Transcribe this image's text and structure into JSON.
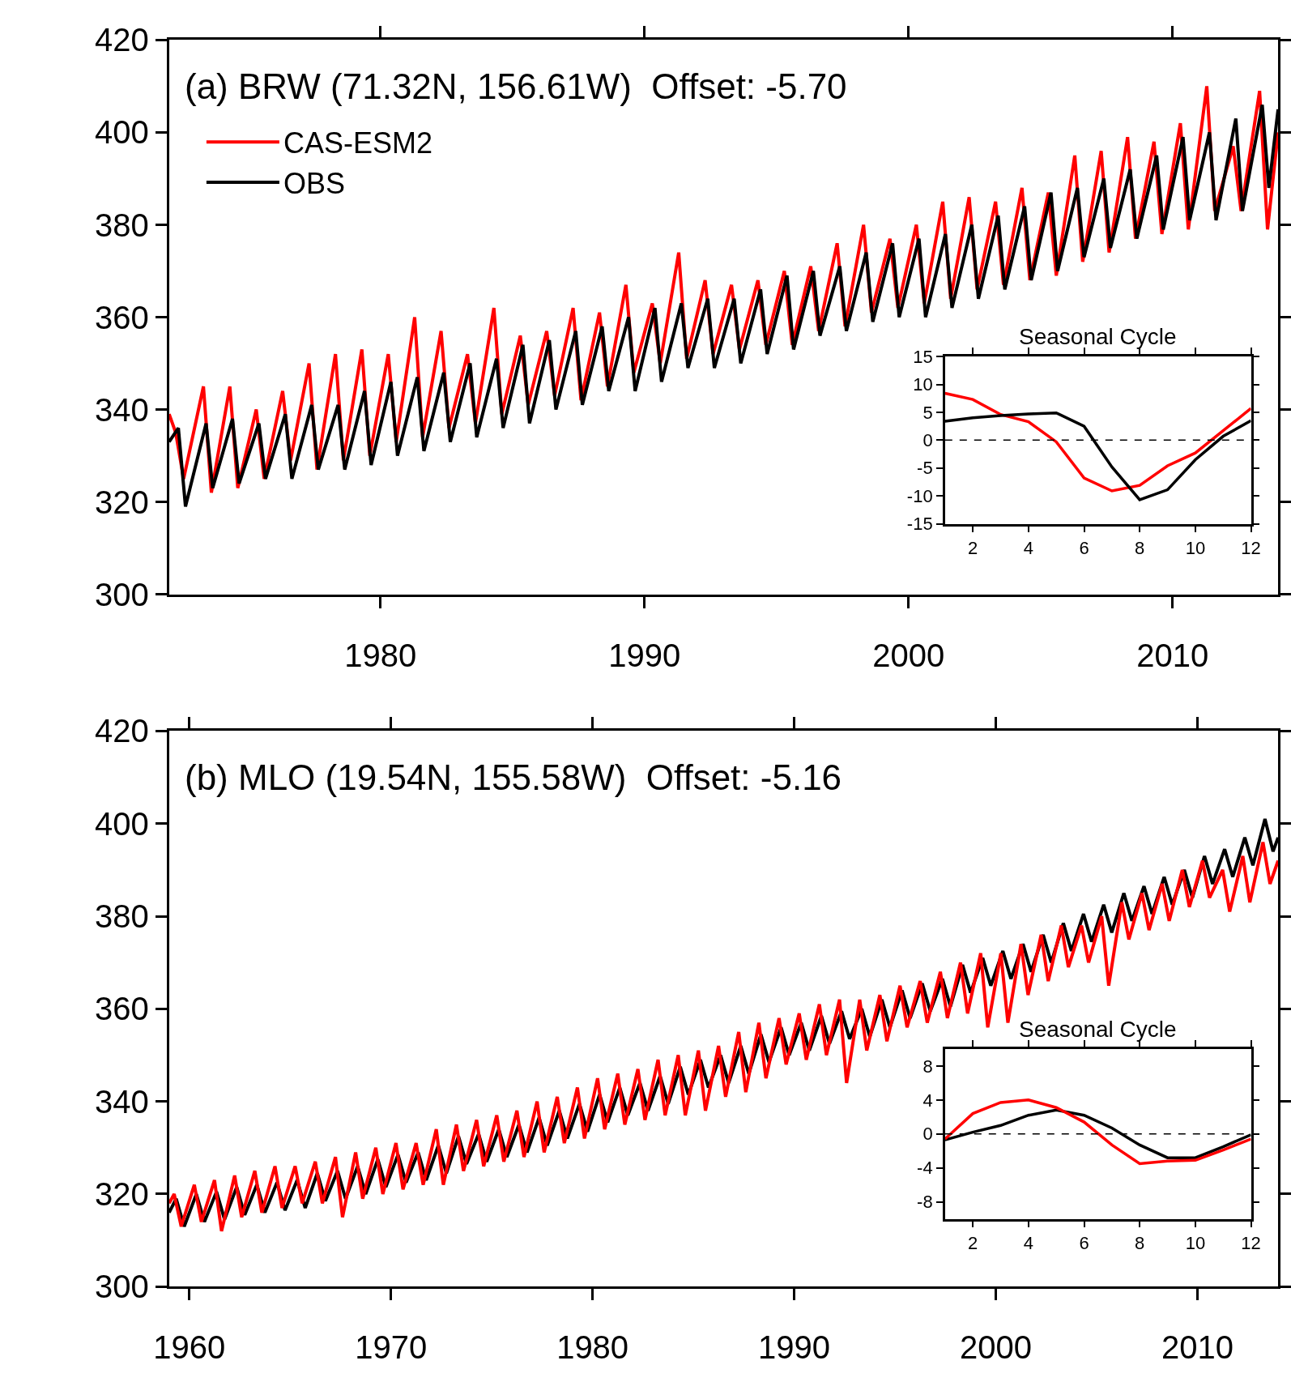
{
  "chart_data": [
    {
      "type": "line",
      "title": "(a) BRW (71.32N, 156.61W)  Offset: -5.70",
      "xlim": [
        1972,
        2014
      ],
      "xticks": [
        1980,
        1990,
        2000,
        2010
      ],
      "ylim": [
        300,
        420
      ],
      "yticks": [
        300,
        320,
        340,
        360,
        380,
        400,
        420
      ],
      "grid": false,
      "legend": "top left",
      "line_style": "solid",
      "marker": "none",
      "series": [
        {
          "name": "CAS-ESM2",
          "color": "#ff0000",
          "x": [
            1972.0,
            1972.25,
            1972.55,
            1973.3,
            1973.6,
            1974.3,
            1974.6,
            1975.3,
            1975.6,
            1976.3,
            1976.6,
            1977.3,
            1977.6,
            1978.3,
            1978.6,
            1979.3,
            1979.6,
            1980.3,
            1980.6,
            1981.3,
            1981.6,
            1982.3,
            1982.6,
            1983.3,
            1983.6,
            1984.3,
            1984.6,
            1985.3,
            1985.6,
            1986.3,
            1986.6,
            1987.3,
            1987.6,
            1988.3,
            1988.6,
            1989.3,
            1989.6,
            1990.3,
            1990.6,
            1991.3,
            1991.6,
            1992.3,
            1992.6,
            1993.3,
            1993.6,
            1994.3,
            1994.6,
            1995.3,
            1995.6,
            1996.3,
            1996.6,
            1997.3,
            1997.6,
            1998.3,
            1998.6,
            1999.3,
            1999.6,
            2000.3,
            2000.6,
            2001.3,
            2001.6,
            2002.3,
            2002.6,
            2003.3,
            2003.6,
            2004.3,
            2004.6,
            2005.3,
            2005.6,
            2006.3,
            2006.6,
            2007.3,
            2007.6,
            2008.3,
            2008.6,
            2009.3,
            2009.6,
            2010.3,
            2010.6,
            2011.3,
            2011.6,
            2012.3,
            2012.6,
            2013.3,
            2013.6,
            2014.0
          ],
          "values": [
            339,
            335,
            325,
            345,
            322,
            345,
            323,
            340,
            325,
            344,
            329,
            350,
            327,
            352,
            329,
            353,
            330,
            352,
            333,
            360,
            334,
            357,
            336,
            352,
            337,
            362,
            339,
            356,
            341,
            357,
            343,
            362,
            342,
            361,
            345,
            367,
            348,
            363,
            350,
            374,
            351,
            368,
            352,
            367,
            353,
            368,
            354,
            370,
            354,
            371,
            357,
            376,
            358,
            380,
            361,
            377,
            362,
            380,
            363,
            385,
            364,
            386,
            366,
            385,
            367,
            388,
            368,
            387,
            369,
            395,
            372,
            396,
            374,
            399,
            377,
            398,
            378,
            402,
            379,
            410,
            383,
            397,
            383,
            409,
            379,
            400
          ]
        },
        {
          "name": "OBS",
          "color": "#000000",
          "x": [
            1972.0,
            1972.35,
            1972.62,
            1973.4,
            1973.65,
            1974.4,
            1974.65,
            1975.4,
            1975.65,
            1976.4,
            1976.65,
            1977.4,
            1977.65,
            1978.4,
            1978.65,
            1979.4,
            1979.65,
            1980.4,
            1980.65,
            1981.4,
            1981.65,
            1982.4,
            1982.65,
            1983.4,
            1983.65,
            1984.4,
            1984.65,
            1985.4,
            1985.65,
            1986.4,
            1986.65,
            1987.4,
            1987.65,
            1988.4,
            1988.65,
            1989.4,
            1989.65,
            1990.4,
            1990.65,
            1991.4,
            1991.65,
            1992.4,
            1992.65,
            1993.4,
            1993.65,
            1994.4,
            1994.65,
            1995.4,
            1995.65,
            1996.4,
            1996.65,
            1997.4,
            1997.65,
            1998.4,
            1998.65,
            1999.4,
            1999.65,
            2000.4,
            2000.65,
            2001.4,
            2001.65,
            2002.4,
            2002.65,
            2003.4,
            2003.65,
            2004.4,
            2004.65,
            2005.4,
            2005.65,
            2006.4,
            2006.65,
            2007.4,
            2007.65,
            2008.4,
            2008.65,
            2009.4,
            2009.65,
            2010.4,
            2010.65,
            2011.4,
            2011.65,
            2012.4,
            2012.65,
            2013.4,
            2013.65,
            2014.0
          ],
          "values": [
            333,
            336,
            319,
            337,
            323,
            338,
            324,
            337,
            325,
            339,
            325,
            341,
            327,
            341,
            327,
            344,
            328,
            346,
            330,
            347,
            331,
            348,
            333,
            350,
            334,
            351,
            336,
            354,
            337,
            355,
            340,
            357,
            341,
            358,
            344,
            360,
            344,
            362,
            346,
            363,
            349,
            364,
            349,
            364,
            350,
            366,
            352,
            369,
            353,
            370,
            356,
            371,
            357,
            374,
            359,
            376,
            360,
            377,
            360,
            378,
            362,
            380,
            364,
            382,
            366,
            384,
            368,
            387,
            370,
            388,
            373,
            390,
            375,
            392,
            377,
            395,
            379,
            399,
            381,
            400,
            381,
            403,
            383,
            406,
            388,
            405
          ]
        }
      ]
    },
    {
      "type": "line",
      "title": "Seasonal Cycle",
      "xlim": [
        1,
        12
      ],
      "xticks": [
        2,
        4,
        6,
        8,
        10,
        12
      ],
      "ylim": [
        -15,
        15
      ],
      "yticks": [
        -15,
        -10,
        -5,
        0,
        5,
        10,
        15
      ],
      "grid": false,
      "legend": false,
      "line_style": "solid",
      "marker": "none",
      "ref_lines": [
        {
          "axis": "y",
          "value": 0,
          "color": "#000000",
          "line_style": "dashed"
        }
      ],
      "x": [
        1,
        2,
        3,
        4,
        5,
        6,
        7,
        8,
        9,
        10,
        11,
        12
      ],
      "series": [
        {
          "color": "#ff0000",
          "values": [
            8.4,
            7.3,
            4.6,
            3.3,
            -0.3,
            -6.8,
            -9.1,
            -8.1,
            -4.6,
            -2.3,
            1.7,
            5.7
          ]
        },
        {
          "color": "#000000",
          "values": [
            3.4,
            4.0,
            4.4,
            4.7,
            4.9,
            2.5,
            -4.8,
            -10.7,
            -8.9,
            -3.5,
            0.7,
            3.5
          ]
        }
      ]
    },
    {
      "type": "line",
      "title": "(b) MLO (19.54N, 155.58W)  Offset: -5.16",
      "xlim": [
        1959,
        2014
      ],
      "xticks": [
        1960,
        1970,
        1980,
        1990,
        2000,
        2010
      ],
      "ylim": [
        300,
        420
      ],
      "yticks": [
        300,
        320,
        340,
        360,
        380,
        400,
        420
      ],
      "grid": false,
      "legend": false,
      "line_style": "solid",
      "marker": "none",
      "series": [
        {
          "color": "#000000",
          "x": [
            1959.0,
            1959.35,
            1959.75,
            1960.35,
            1960.75,
            1961.35,
            1961.75,
            1962.35,
            1962.75,
            1963.35,
            1963.75,
            1964.35,
            1964.75,
            1965.35,
            1965.75,
            1966.35,
            1966.75,
            1967.35,
            1967.75,
            1968.35,
            1968.75,
            1969.35,
            1969.75,
            1970.35,
            1970.75,
            1971.35,
            1971.75,
            1972.35,
            1972.75,
            1973.35,
            1973.75,
            1974.35,
            1974.75,
            1975.35,
            1975.75,
            1976.35,
            1976.75,
            1977.35,
            1977.75,
            1978.35,
            1978.75,
            1979.35,
            1979.75,
            1980.35,
            1980.75,
            1981.35,
            1981.75,
            1982.35,
            1982.75,
            1983.35,
            1983.75,
            1984.35,
            1984.75,
            1985.35,
            1985.75,
            1986.35,
            1986.75,
            1987.35,
            1987.75,
            1988.35,
            1988.75,
            1989.35,
            1989.75,
            1990.35,
            1990.75,
            1991.35,
            1991.75,
            1992.35,
            1992.75,
            1993.35,
            1993.75,
            1994.35,
            1994.75,
            1995.35,
            1995.75,
            1996.35,
            1996.75,
            1997.35,
            1997.75,
            1998.35,
            1998.75,
            1999.35,
            1999.75,
            2000.35,
            2000.75,
            2001.35,
            2001.75,
            2002.35,
            2002.75,
            2003.35,
            2003.75,
            2004.35,
            2004.75,
            2005.35,
            2005.75,
            2006.35,
            2006.75,
            2007.35,
            2007.75,
            2008.35,
            2008.75,
            2009.35,
            2009.75,
            2010.35,
            2010.75,
            2011.35,
            2011.75,
            2012.35,
            2012.75,
            2013.35,
            2013.75,
            2014.0
          ],
          "values": [
            316,
            319,
            313,
            320,
            314,
            320.5,
            314.5,
            321.5,
            315.5,
            322,
            316,
            322.5,
            316.5,
            323,
            317,
            324.5,
            318.5,
            325,
            319,
            326,
            320,
            327.5,
            321.5,
            328.5,
            322.5,
            329,
            323,
            330.5,
            324.5,
            332.5,
            326.5,
            333,
            327,
            334,
            328,
            335,
            329,
            336.5,
            330.5,
            338,
            332,
            339.5,
            333.5,
            341.5,
            335.5,
            343,
            337,
            344,
            338,
            345.5,
            339.5,
            347.5,
            341.5,
            349,
            343,
            350,
            344,
            352,
            346,
            354.5,
            348.5,
            356,
            350,
            357,
            351,
            358.5,
            352.5,
            359.5,
            353.5,
            360,
            354,
            362,
            356,
            364,
            358,
            365.5,
            359.5,
            366.5,
            360.5,
            369.5,
            363.5,
            371,
            365,
            372.5,
            366.5,
            374,
            368,
            376,
            370,
            378.5,
            372.5,
            380.5,
            374.5,
            382.5,
            376.5,
            385,
            379,
            386.5,
            380.5,
            388.5,
            382.5,
            390,
            384,
            393,
            387,
            394.5,
            388.5,
            397,
            391,
            401,
            394,
            397
          ]
        },
        {
          "color": "#ff0000",
          "x": [
            1959.0,
            1959.25,
            1959.6,
            1960.25,
            1960.6,
            1961.25,
            1961.6,
            1962.25,
            1962.6,
            1963.25,
            1963.6,
            1964.25,
            1964.6,
            1965.25,
            1965.6,
            1966.25,
            1966.6,
            1967.25,
            1967.6,
            1968.25,
            1968.6,
            1969.25,
            1969.6,
            1970.25,
            1970.6,
            1971.25,
            1971.6,
            1972.25,
            1972.6,
            1973.25,
            1973.6,
            1974.25,
            1974.6,
            1975.25,
            1975.6,
            1976.25,
            1976.6,
            1977.25,
            1977.6,
            1978.25,
            1978.6,
            1979.25,
            1979.6,
            1980.25,
            1980.6,
            1981.25,
            1981.6,
            1982.25,
            1982.6,
            1983.25,
            1983.6,
            1984.25,
            1984.6,
            1985.25,
            1985.6,
            1986.25,
            1986.6,
            1987.25,
            1987.6,
            1988.25,
            1988.6,
            1989.25,
            1989.6,
            1990.25,
            1990.6,
            1991.25,
            1991.6,
            1992.25,
            1992.6,
            1993.25,
            1993.6,
            1994.25,
            1994.6,
            1995.25,
            1995.6,
            1996.25,
            1996.6,
            1997.25,
            1997.6,
            1998.25,
            1998.6,
            1999.25,
            1999.6,
            2000.25,
            2000.6,
            2001.25,
            2001.6,
            2002.25,
            2002.6,
            2003.25,
            2003.6,
            2004.25,
            2004.6,
            2005.25,
            2005.6,
            2006.25,
            2006.6,
            2007.25,
            2007.6,
            2008.25,
            2008.6,
            2009.25,
            2009.6,
            2010.25,
            2010.6,
            2011.25,
            2011.6,
            2012.25,
            2012.6,
            2013.25,
            2013.6,
            2014.0
          ],
          "values": [
            318,
            320,
            313,
            322,
            314,
            323,
            312,
            324,
            315,
            325,
            316,
            326,
            317,
            326,
            318,
            327,
            318,
            328,
            315,
            329,
            319,
            330,
            320,
            331,
            321,
            331,
            322,
            334,
            322,
            335,
            325,
            336,
            326,
            337,
            327,
            338,
            328,
            340,
            329,
            341,
            331,
            343,
            332,
            345,
            334,
            346,
            335,
            347,
            336,
            349,
            337,
            350,
            337,
            351,
            338,
            352,
            341,
            355,
            342,
            357,
            345,
            358,
            348,
            359,
            349,
            361,
            350,
            362,
            344,
            362,
            351,
            363,
            353,
            365,
            356,
            366,
            357,
            368,
            358,
            370,
            359,
            372,
            356,
            372,
            357,
            374,
            363,
            376,
            366,
            378,
            369,
            378,
            370,
            380,
            365,
            383,
            375,
            385,
            377,
            387,
            379,
            390,
            382,
            392,
            384,
            390,
            381,
            393,
            383,
            396,
            387,
            392
          ]
        }
      ]
    },
    {
      "type": "line",
      "title": "Seasonal Cycle",
      "xlim": [
        1,
        12
      ],
      "xticks": [
        2,
        4,
        6,
        8,
        10,
        12
      ],
      "ylim": [
        -10,
        10
      ],
      "yticks": [
        -8,
        -4,
        0,
        4,
        8
      ],
      "grid": false,
      "legend": false,
      "line_style": "solid",
      "marker": "none",
      "ref_lines": [
        {
          "axis": "y",
          "value": 0,
          "color": "#000000",
          "line_style": "dashed"
        }
      ],
      "x": [
        1,
        2,
        3,
        4,
        5,
        6,
        7,
        8,
        9,
        10,
        11,
        12
      ],
      "series": [
        {
          "color": "#000000",
          "values": [
            -0.7,
            0.2,
            1.0,
            2.2,
            2.8,
            2.2,
            0.7,
            -1.3,
            -2.8,
            -2.8,
            -1.5,
            -0.1
          ]
        },
        {
          "color": "#ff0000",
          "values": [
            -0.6,
            2.4,
            3.7,
            4.0,
            3.1,
            1.4,
            -1.3,
            -3.5,
            -3.2,
            -3.1,
            -1.9,
            -0.6
          ]
        }
      ]
    }
  ]
}
